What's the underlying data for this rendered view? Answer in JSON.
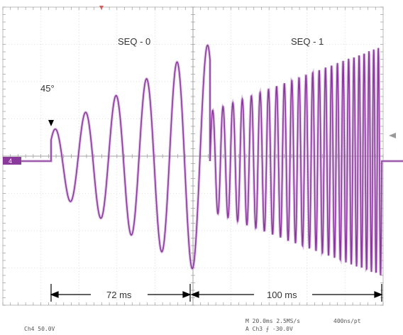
{
  "scope": {
    "seq0_label": "SEQ - 0",
    "seq1_label": "SEQ - 1",
    "phase_label": "45°",
    "interval_0": "72 ms",
    "interval_1": "100 ms",
    "status": {
      "channel_scale": "Ch4   50.0V",
      "timebase": "M 20.0ms 2.5MS/s",
      "record": "400ns/pt",
      "trigger": "A  Ch3  ⨍  -30.0V"
    },
    "ground_marker": "4",
    "colors": {
      "trace": "#8a3a9a",
      "grid": "#c8c8c8",
      "dim_lines": "#000000"
    },
    "icons": [
      "trigger-arrow-icon",
      "ground-marker-icon",
      "trigger-level-icon"
    ]
  }
}
